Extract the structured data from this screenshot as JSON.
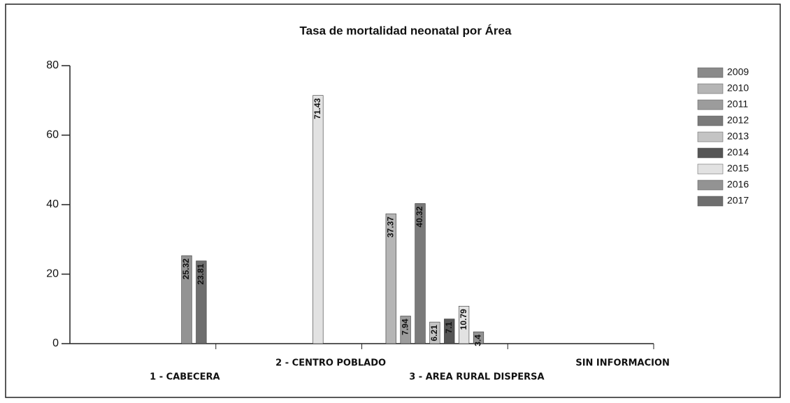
{
  "chart_data": {
    "type": "bar",
    "title": "Tasa de mortalidad neonatal por Área",
    "categories": [
      "1 - CABECERA",
      "2 - CENTRO POBLADO",
      "3 - AREA RURAL DISPERSA",
      "SIN INFORMACION"
    ],
    "series": [
      {
        "name": "2009",
        "color": "#8a8a8a",
        "values": [
          null,
          null,
          null,
          null
        ]
      },
      {
        "name": "2010",
        "color": "#b5b5b5",
        "values": [
          null,
          null,
          37.37,
          null
        ]
      },
      {
        "name": "2011",
        "color": "#9c9c9c",
        "values": [
          null,
          null,
          7.94,
          null
        ]
      },
      {
        "name": "2012",
        "color": "#7a7a7a",
        "values": [
          null,
          null,
          40.32,
          null
        ]
      },
      {
        "name": "2013",
        "color": "#c4c4c4",
        "values": [
          null,
          null,
          6.21,
          null
        ]
      },
      {
        "name": "2014",
        "color": "#555555",
        "values": [
          null,
          null,
          7.1,
          null
        ]
      },
      {
        "name": "2015",
        "color": "#e2e2e2",
        "values": [
          null,
          71.43,
          10.79,
          null
        ]
      },
      {
        "name": "2016",
        "color": "#939393",
        "values": [
          25.32,
          null,
          3.4,
          null
        ]
      },
      {
        "name": "2017",
        "color": "#6e6e6e",
        "values": [
          23.81,
          null,
          null,
          null
        ]
      }
    ],
    "ylim": [
      0,
      80
    ],
    "yticks": [
      0,
      20,
      40,
      60,
      80
    ]
  }
}
